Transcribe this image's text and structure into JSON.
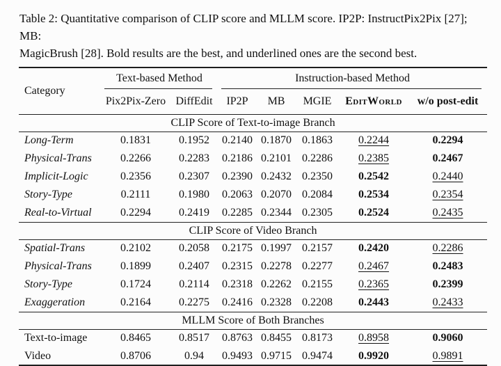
{
  "caption": {
    "line1": "Table 2: Quantitative comparison of CLIP score and MLLM score. IP2P: InstructPix2Pix [27]; MB:",
    "line2": "MagicBrush [28]. Bold results are the best, and underlined ones are the second best."
  },
  "colors": {
    "background": "#fcfcfc",
    "text": "#111111",
    "rules": "#1e1e1e"
  },
  "table": {
    "header": {
      "category": "Category",
      "groups": [
        {
          "label": "Text-based Method",
          "span": 2
        },
        {
          "label": "Instruction-based Method",
          "span": 5
        }
      ],
      "columns": [
        "Pix2Pix-Zero",
        "DiffEdit",
        "IP2P",
        "MB",
        "MGIE",
        "EditWorld",
        "w/o post-edit"
      ]
    },
    "legend": {
      "bold_means": "best",
      "underline_means": "second best"
    },
    "sections": [
      {
        "title": "CLIP Score of Text-to-image Branch",
        "italic_labels": true,
        "rows": [
          {
            "category": "Long-Term",
            "values": [
              "0.1831",
              "0.1952",
              "0.2140",
              "0.1870",
              "0.1863",
              "0.2244",
              "0.2294"
            ],
            "best": 6,
            "second": 5
          },
          {
            "category": "Physical-Trans",
            "values": [
              "0.2266",
              "0.2283",
              "0.2186",
              "0.2101",
              "0.2286",
              "0.2385",
              "0.2467"
            ],
            "best": 6,
            "second": 5
          },
          {
            "category": "Implicit-Logic",
            "values": [
              "0.2356",
              "0.2307",
              "0.2390",
              "0.2432",
              "0.2350",
              "0.2542",
              "0.2440"
            ],
            "best": 5,
            "second": 6
          },
          {
            "category": "Story-Type",
            "values": [
              "0.2111",
              "0.1980",
              "0.2063",
              "0.2070",
              "0.2084",
              "0.2534",
              "0.2354"
            ],
            "best": 5,
            "second": 6
          },
          {
            "category": "Real-to-Virtual",
            "values": [
              "0.2294",
              "0.2419",
              "0.2285",
              "0.2344",
              "0.2305",
              "0.2524",
              "0.2435"
            ],
            "best": 5,
            "second": 6
          }
        ]
      },
      {
        "title": "CLIP Score of Video Branch",
        "italic_labels": true,
        "rows": [
          {
            "category": "Spatial-Trans",
            "values": [
              "0.2102",
              "0.2058",
              "0.2175",
              "0.1997",
              "0.2157",
              "0.2420",
              "0.2286"
            ],
            "best": 5,
            "second": 6
          },
          {
            "category": "Physical-Trans",
            "values": [
              "0.1899",
              "0.2407",
              "0.2315",
              "0.2278",
              "0.2277",
              "0.2467",
              "0.2483"
            ],
            "best": 6,
            "second": 5
          },
          {
            "category": "Story-Type",
            "values": [
              "0.1724",
              "0.2114",
              "0.2318",
              "0.2262",
              "0.2155",
              "0.2365",
              "0.2399"
            ],
            "best": 6,
            "second": 5
          },
          {
            "category": "Exaggeration",
            "values": [
              "0.2164",
              "0.2275",
              "0.2416",
              "0.2328",
              "0.2208",
              "0.2443",
              "0.2433"
            ],
            "best": 5,
            "second": 6
          }
        ]
      },
      {
        "title": "MLLM Score of Both Branches",
        "italic_labels": false,
        "rows": [
          {
            "category": "Text-to-image",
            "values": [
              "0.8465",
              "0.8517",
              "0.8763",
              "0.8455",
              "0.8173",
              "0.8958",
              "0.9060"
            ],
            "best": 6,
            "second": 5
          },
          {
            "category": "Video",
            "values": [
              "0.8706",
              "0.94",
              "0.9493",
              "0.9715",
              "0.9474",
              "0.9920",
              "0.9891"
            ],
            "best": 5,
            "second": 6
          }
        ]
      }
    ]
  }
}
